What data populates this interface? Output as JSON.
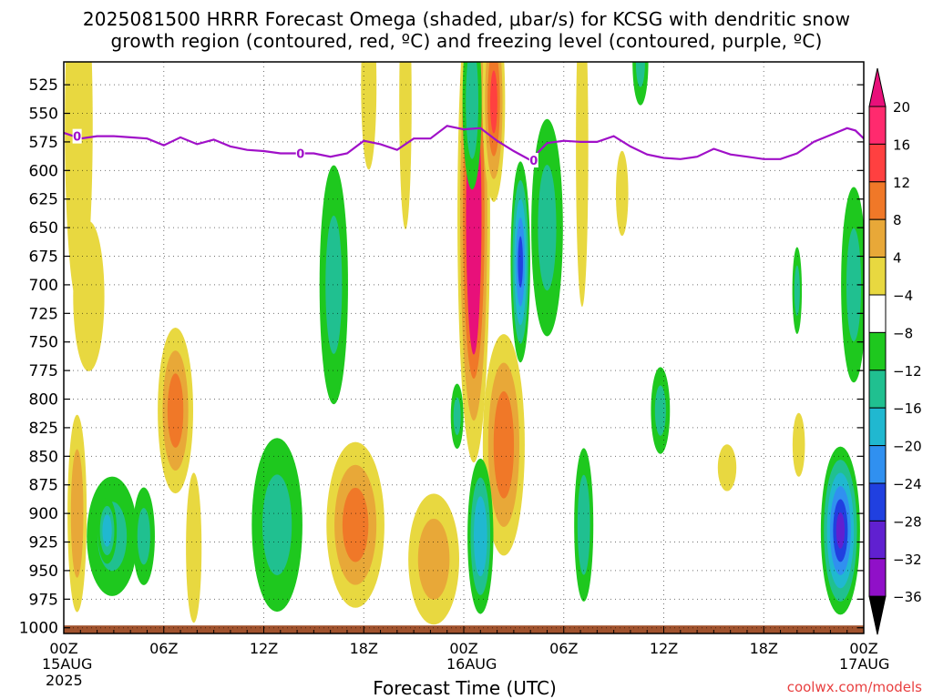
{
  "title_line1": "2025081500 HRRR Forecast Omega (shaded, μbar/s) for KCSG with dendritic snow",
  "title_line2": "growth region (contoured, red, ºC) and freezing level (contoured, purple, ºC)",
  "xlabel": "Forecast Time (UTC)",
  "credit": "coolwx.com/models",
  "date_labels": {
    "start_day": "15AUG",
    "start_year": "2025",
    "mid_day": "16AUG",
    "end_day": "17AUG"
  },
  "chart_data": {
    "type": "heatmap",
    "title": "2025081500 HRRR Forecast Omega (shaded, μbar/s) for KCSG with dendritic snow growth region (contoured, red, ºC) and freezing level (contoured, purple, ºC)",
    "xlabel": "Forecast Time (UTC)",
    "ylabel": "",
    "x_range_hours": [
      0,
      48
    ],
    "x_ticks": [
      {
        "hour": 0,
        "label": "00Z"
      },
      {
        "hour": 6,
        "label": "06Z"
      },
      {
        "hour": 12,
        "label": "12Z"
      },
      {
        "hour": 18,
        "label": "18Z"
      },
      {
        "hour": 24,
        "label": "00Z"
      },
      {
        "hour": 30,
        "label": "06Z"
      },
      {
        "hour": 36,
        "label": "12Z"
      },
      {
        "hour": 42,
        "label": "18Z"
      },
      {
        "hour": 48,
        "label": "00Z"
      }
    ],
    "y_range_hPa": [
      1005,
      505
    ],
    "y_ticks": [
      525,
      550,
      575,
      600,
      625,
      650,
      675,
      700,
      725,
      750,
      775,
      800,
      825,
      850,
      875,
      900,
      925,
      950,
      975,
      1000
    ],
    "grid": true,
    "colorbar": {
      "labels": [
        20,
        16,
        12,
        8,
        4,
        -4,
        -8,
        -12,
        -16,
        -20,
        -24,
        -28,
        -32,
        -36
      ],
      "colors": [
        "#ff2a6e",
        "#ff4040",
        "#f07828",
        "#e8a838",
        "#e8d840",
        "#ffffff",
        "#1ec81e",
        "#20c090",
        "#20b8d0",
        "#3090f0",
        "#2040e0",
        "#6020d0",
        "#9010c8",
        "#a0a0a0",
        "#000000"
      ],
      "top_arrow_color": "#e8107a",
      "bottom_arrow_color": "#000000"
    },
    "freezing_level": {
      "label": "0",
      "color": "#a010c8",
      "points": [
        [
          0,
          567
        ],
        [
          1,
          572
        ],
        [
          2,
          570
        ],
        [
          3,
          570
        ],
        [
          4,
          571
        ],
        [
          5,
          572
        ],
        [
          6,
          578
        ],
        [
          7,
          571
        ],
        [
          8,
          577
        ],
        [
          9,
          573
        ],
        [
          10,
          579
        ],
        [
          11,
          582
        ],
        [
          12,
          583
        ],
        [
          13,
          585
        ],
        [
          14,
          585
        ],
        [
          15,
          585
        ],
        [
          16,
          588
        ],
        [
          17,
          585
        ],
        [
          18,
          574
        ],
        [
          19,
          577
        ],
        [
          20,
          582
        ],
        [
          21,
          572
        ],
        [
          22,
          572
        ],
        [
          23,
          561
        ],
        [
          24,
          564
        ],
        [
          25,
          563
        ],
        [
          26,
          574
        ],
        [
          27,
          583
        ],
        [
          28,
          591
        ],
        [
          29,
          576
        ],
        [
          30,
          574
        ],
        [
          31,
          575
        ],
        [
          32,
          575
        ],
        [
          33,
          570
        ],
        [
          34,
          579
        ],
        [
          35,
          586
        ],
        [
          36,
          589
        ],
        [
          37,
          590
        ],
        [
          38,
          588
        ],
        [
          39,
          581
        ],
        [
          40,
          586
        ],
        [
          41,
          588
        ],
        [
          42,
          590
        ],
        [
          43,
          590
        ],
        [
          44,
          585
        ],
        [
          45,
          575
        ],
        [
          46,
          569
        ],
        [
          47,
          563
        ],
        [
          47.5,
          565
        ],
        [
          48,
          572
        ]
      ],
      "label_positions": [
        [
          0.8,
          570
        ],
        [
          14.2,
          585
        ],
        [
          28.2,
          591
        ]
      ]
    },
    "omega_features": [
      {
        "h": 0.9,
        "p": 560,
        "rh": 0.9,
        "rp": 170,
        "v": 5
      },
      {
        "h": 1.5,
        "p": 710,
        "rh": 1.0,
        "rp": 70,
        "v": 6
      },
      {
        "h": 0.8,
        "p": 900,
        "rh": 0.6,
        "rp": 90,
        "v": 10
      },
      {
        "h": 2.9,
        "p": 920,
        "rh": 1.6,
        "rp": 55,
        "v": -8
      },
      {
        "h": 2.6,
        "p": 915,
        "rh": 0.6,
        "rp": 30,
        "v": -14
      },
      {
        "h": 4.8,
        "p": 920,
        "rh": 0.7,
        "rp": 45,
        "v": -8
      },
      {
        "h": 6.7,
        "p": 810,
        "rh": 1.1,
        "rp": 75,
        "v": 13
      },
      {
        "h": 7.8,
        "p": 930,
        "rh": 0.5,
        "rp": 70,
        "v": 6
      },
      {
        "h": 12.8,
        "p": 910,
        "rh": 1.6,
        "rp": 80,
        "v": -8
      },
      {
        "h": 16.2,
        "p": 700,
        "rh": 0.9,
        "rp": 110,
        "v": -8
      },
      {
        "h": 18.3,
        "p": 525,
        "rh": 0.5,
        "rp": 80,
        "v": 5
      },
      {
        "h": 17.5,
        "p": 910,
        "rh": 1.8,
        "rp": 75,
        "v": 13
      },
      {
        "h": 22.2,
        "p": 940,
        "rh": 1.6,
        "rp": 60,
        "v": 9
      },
      {
        "h": 20.5,
        "p": 540,
        "rh": 0.4,
        "rp": 120,
        "v": 5
      },
      {
        "h": 24.6,
        "p": 640,
        "rh": 1.0,
        "rp": 220,
        "v": 22
      },
      {
        "h": 26.4,
        "p": 840,
        "rh": 1.3,
        "rp": 100,
        "v": 14
      },
      {
        "h": 25.8,
        "p": 540,
        "rh": 0.7,
        "rp": 90,
        "v": 16
      },
      {
        "h": 25.0,
        "p": 920,
        "rh": 0.8,
        "rp": 70,
        "v": -15
      },
      {
        "h": 24.5,
        "p": 540,
        "rh": 0.6,
        "rp": 80,
        "v": -10
      },
      {
        "h": 27.4,
        "p": 680,
        "rh": 0.6,
        "rp": 90,
        "v": -20
      },
      {
        "h": 23.6,
        "p": 815,
        "rh": 0.4,
        "rp": 30,
        "v": -8
      },
      {
        "h": 29.0,
        "p": 650,
        "rh": 1.0,
        "rp": 100,
        "v": -8
      },
      {
        "h": 31.2,
        "p": 910,
        "rh": 0.6,
        "rp": 70,
        "v": -10
      },
      {
        "h": 31.1,
        "p": 580,
        "rh": 0.4,
        "rp": 150,
        "v": 5
      },
      {
        "h": 33.5,
        "p": 620,
        "rh": 0.4,
        "rp": 40,
        "v": 5
      },
      {
        "h": 35.8,
        "p": 810,
        "rh": 0.6,
        "rp": 40,
        "v": -8
      },
      {
        "h": 34.6,
        "p": 505,
        "rh": 0.5,
        "rp": 40,
        "v": -8
      },
      {
        "h": 39.8,
        "p": 860,
        "rh": 0.6,
        "rp": 22,
        "v": 5
      },
      {
        "h": 44.0,
        "p": 705,
        "rh": 0.3,
        "rp": 40,
        "v": -8
      },
      {
        "h": 44.1,
        "p": 840,
        "rh": 0.4,
        "rp": 30,
        "v": 5
      },
      {
        "h": 46.6,
        "p": 915,
        "rh": 1.2,
        "rp": 75,
        "v": -24
      },
      {
        "h": 47.4,
        "p": 700,
        "rh": 0.8,
        "rp": 90,
        "v": -8
      }
    ],
    "surface_band_hPa": [
      998,
      1005
    ],
    "surface_color": "#a0522d"
  }
}
